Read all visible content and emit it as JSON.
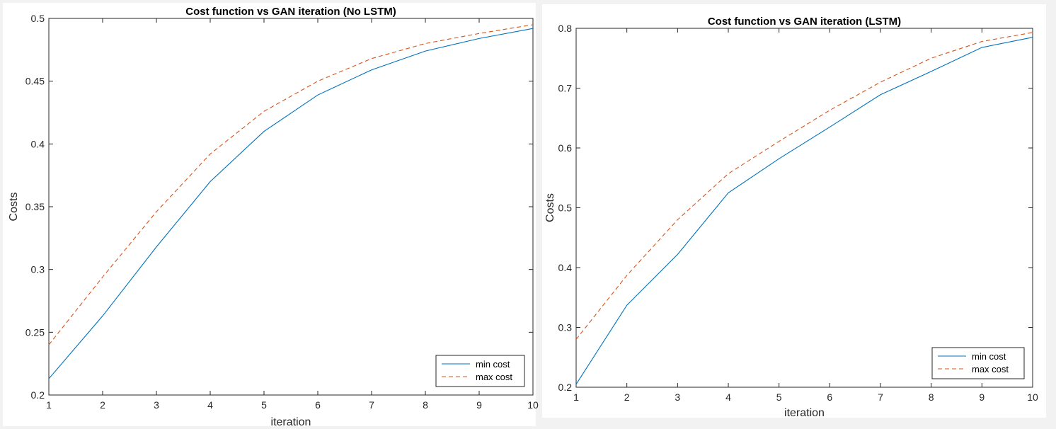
{
  "chart_data": [
    {
      "type": "line",
      "title": "Cost function vs GAN iteration (No LSTM)",
      "xlabel": "iteration",
      "ylabel": "Costs",
      "xlim": [
        1,
        10
      ],
      "ylim": [
        0.2,
        0.5
      ],
      "xticks": [
        1,
        2,
        3,
        4,
        5,
        6,
        7,
        8,
        9,
        10
      ],
      "xtick_labels": [
        "1",
        "2",
        "3",
        "4",
        "5",
        "6",
        "7",
        "8",
        "9",
        "10"
      ],
      "yticks": [
        0.2,
        0.25,
        0.3,
        0.35,
        0.4,
        0.45,
        0.5
      ],
      "ytick_labels": [
        "0.2",
        "0.25",
        "0.3",
        "0.35",
        "0.4",
        "0.45",
        "0.5"
      ],
      "grid": false,
      "legend_position": "bottom-right",
      "x": [
        1,
        2,
        3,
        4,
        5,
        6,
        7,
        8,
        9,
        10
      ],
      "series": [
        {
          "name": "min cost",
          "color": "#0072bd",
          "dashed": false,
          "values": [
            0.213,
            0.263,
            0.318,
            0.37,
            0.41,
            0.439,
            0.459,
            0.474,
            0.484,
            0.492
          ]
        },
        {
          "name": "max cost",
          "color": "#d95319",
          "dashed": true,
          "values": [
            0.24,
            0.294,
            0.346,
            0.392,
            0.426,
            0.45,
            0.468,
            0.48,
            0.488,
            0.495
          ]
        }
      ]
    },
    {
      "type": "line",
      "title": "Cost function vs GAN iteration (LSTM)",
      "xlabel": "iteration",
      "ylabel": "Costs",
      "xlim": [
        1,
        10
      ],
      "ylim": [
        0.2,
        0.8
      ],
      "xticks": [
        1,
        2,
        3,
        4,
        5,
        6,
        7,
        8,
        9,
        10
      ],
      "xtick_labels": [
        "1",
        "2",
        "3",
        "4",
        "5",
        "6",
        "7",
        "8",
        "9",
        "10"
      ],
      "yticks": [
        0.2,
        0.3,
        0.4,
        0.5,
        0.6,
        0.7,
        0.8
      ],
      "ytick_labels": [
        "0.2",
        "0.3",
        "0.4",
        "0.5",
        "0.6",
        "0.7",
        "0.8"
      ],
      "grid": false,
      "legend_position": "bottom-right",
      "x": [
        1,
        2,
        3,
        4,
        5,
        6,
        7,
        8,
        9,
        10
      ],
      "series": [
        {
          "name": "min cost",
          "color": "#0072bd",
          "dashed": false,
          "values": [
            0.205,
            0.337,
            0.422,
            0.525,
            0.582,
            0.635,
            0.689,
            0.728,
            0.768,
            0.785
          ]
        },
        {
          "name": "max cost",
          "color": "#d95319",
          "dashed": true,
          "values": [
            0.28,
            0.387,
            0.48,
            0.557,
            0.611,
            0.663,
            0.71,
            0.75,
            0.778,
            0.793
          ]
        }
      ]
    }
  ]
}
